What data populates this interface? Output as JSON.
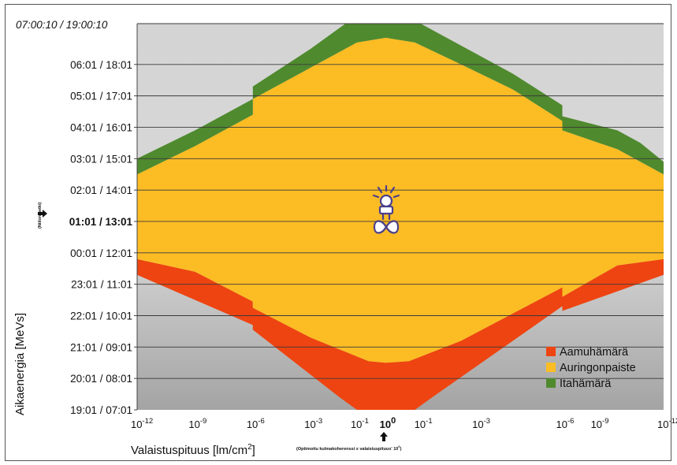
{
  "chart_data": {
    "type": "area",
    "title": "",
    "xlabel": "Valaistuspituus [lm/cm",
    "xlabel_sup": "2",
    "xlabel_end": "]",
    "ylabel": "Aikaenergia [MeVs]",
    "y_side_note": "(Niilon hetki)",
    "x_note": "(Optimoitu kulmakoherenssi x valaistuspituus' 10",
    "x_note_sup": "0",
    "x_note_end": ")",
    "y_top_label": "07:00:10 / 19:00:10",
    "y_ticks": [
      "06:01 / 18:01",
      "05:01 / 17:01",
      "04:01 / 16:01",
      "03:01 / 15:01",
      "02:01 / 14:01",
      "01:01 / 13:01",
      "00:01 / 12:01",
      "23:01 / 11:01",
      "22:01 / 10:01",
      "21:01 / 09:01",
      "20:01 / 08:01",
      "19:01 / 07:01"
    ],
    "y_highlight": "01:01 / 13:01",
    "x_ticks": [
      {
        "base": "10",
        "exp": "-12",
        "x": 0
      },
      {
        "base": "10",
        "exp": "-9",
        "x": 1
      },
      {
        "base": "10",
        "exp": "-6",
        "x": 2
      },
      {
        "base": "10",
        "exp": "-3",
        "x": 3
      },
      {
        "base": "10",
        "exp": "-1",
        "x": 3.8
      },
      {
        "base": "10",
        "exp": "0",
        "x": 4.3,
        "bold": true
      },
      {
        "base": "10",
        "exp": "-1",
        "x": 4.9
      },
      {
        "base": "10",
        "exp": "-3",
        "x": 5.9
      },
      {
        "base": "10",
        "exp": "-6",
        "x": 7.35
      },
      {
        "base": "10",
        "exp": "-9",
        "x": 7.95
      },
      {
        "base": "10",
        "exp": "-12",
        "x": 9.1
      }
    ],
    "x_range": [
      0,
      9.1
    ],
    "y_range": [
      0,
      12.3
    ],
    "grid": true,
    "legend_position": "bottom-right",
    "series": [
      {
        "name": "Aamuhämärä",
        "color": "#ee4411",
        "lower": [
          [
            0,
            4.3
          ],
          [
            2,
            2.7
          ],
          [
            2,
            2.55
          ],
          [
            3.5,
            0.4
          ],
          [
            3.8,
            0
          ],
          [
            4.8,
            0
          ],
          [
            5.1,
            0.4
          ],
          [
            7.35,
            3.3
          ],
          [
            7.35,
            3.15
          ],
          [
            9.1,
            4.3
          ]
        ],
        "upper": [
          [
            0,
            4.8
          ],
          [
            1,
            4.4
          ],
          [
            2,
            3.45
          ],
          [
            2,
            3.25
          ],
          [
            3,
            2.3
          ],
          [
            4.0,
            1.55
          ],
          [
            4.3,
            1.5
          ],
          [
            4.7,
            1.55
          ],
          [
            5.6,
            2.2
          ],
          [
            7.35,
            3.9
          ],
          [
            7.35,
            3.6
          ],
          [
            8.3,
            4.6
          ],
          [
            9.1,
            4.8
          ]
        ]
      },
      {
        "name": "Auringonpaiste",
        "color": "#fcbc24",
        "lower": [
          [
            0,
            4.8
          ],
          [
            1,
            4.4
          ],
          [
            2,
            3.45
          ],
          [
            2,
            3.25
          ],
          [
            3,
            2.3
          ],
          [
            4.0,
            1.55
          ],
          [
            4.3,
            1.5
          ],
          [
            4.7,
            1.55
          ],
          [
            5.6,
            2.2
          ],
          [
            7.35,
            3.9
          ],
          [
            7.35,
            3.6
          ],
          [
            8.3,
            4.6
          ],
          [
            9.1,
            4.8
          ]
        ],
        "upper": [
          [
            0,
            7.5
          ],
          [
            1,
            8.4
          ],
          [
            2,
            9.4
          ],
          [
            2,
            9.9
          ],
          [
            3,
            10.9
          ],
          [
            3.8,
            11.7
          ],
          [
            4.3,
            11.85
          ],
          [
            4.8,
            11.7
          ],
          [
            5.6,
            11.0
          ],
          [
            6.5,
            10.2
          ],
          [
            7.35,
            9.2
          ],
          [
            7.35,
            8.9
          ],
          [
            8.3,
            8.3
          ],
          [
            8.7,
            7.9
          ],
          [
            9.1,
            7.5
          ]
        ]
      },
      {
        "name": "Itahämärä",
        "color": "#4f8a2e",
        "lower": [
          [
            0,
            7.5
          ],
          [
            1,
            8.4
          ],
          [
            2,
            9.4
          ],
          [
            2,
            9.9
          ],
          [
            3,
            10.9
          ],
          [
            3.8,
            11.7
          ],
          [
            4.3,
            11.85
          ],
          [
            4.8,
            11.7
          ],
          [
            5.6,
            11.0
          ],
          [
            6.5,
            10.2
          ],
          [
            7.35,
            9.2
          ],
          [
            7.35,
            8.9
          ],
          [
            8.3,
            8.3
          ],
          [
            8.7,
            7.9
          ],
          [
            9.1,
            7.5
          ]
        ],
        "upper": [
          [
            0,
            8.0
          ],
          [
            1,
            8.9
          ],
          [
            2,
            9.9
          ],
          [
            2,
            10.3
          ],
          [
            3,
            11.5
          ],
          [
            3.6,
            12.3
          ],
          [
            4.9,
            12.3
          ],
          [
            5.6,
            11.6
          ],
          [
            6.5,
            10.7
          ],
          [
            7.35,
            9.7
          ],
          [
            7.35,
            9.35
          ],
          [
            8.3,
            8.9
          ],
          [
            8.7,
            8.5
          ],
          [
            9.1,
            7.9
          ]
        ]
      }
    ],
    "background_colors": {
      "upper": "#d4d4d4",
      "lower": "#a4a4a4"
    }
  }
}
